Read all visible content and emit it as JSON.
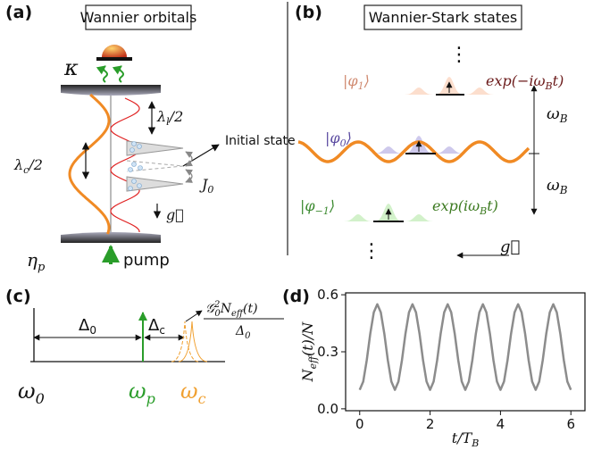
{
  "panel_a": {
    "label": "(a)",
    "title": "Wannier orbitals",
    "kappa": "κ",
    "lambda_l": {
      "base": "λ",
      "sub": "l",
      "rest": "/2"
    },
    "lambda_c": {
      "base": "λ",
      "sub": "c",
      "rest": "/2"
    },
    "initial_state": "Initial state",
    "J0": {
      "base": "J",
      "sub": "0"
    },
    "g": "g⃗",
    "eta_p": {
      "base": "η",
      "sub": "p"
    },
    "pump": "pump"
  },
  "panel_b": {
    "label": "(b)",
    "title": "Wannier-Stark states",
    "dots_top": "⋮",
    "dots_bottom": "⋮",
    "phi1": {
      "base": "|φ",
      "sub": "1",
      "rest": "⟩"
    },
    "phi0": {
      "base": "|φ",
      "sub": "0",
      "rest": "⟩"
    },
    "phim1": {
      "base": "|φ",
      "sub": "−1",
      "rest": "⟩"
    },
    "exp1": {
      "base": "exp(−iω",
      "sub": "B",
      "rest": "t)"
    },
    "expm1": {
      "base": "exp(iω",
      "sub": "B",
      "rest": "t)"
    },
    "omega_upper": {
      "base": "ω",
      "sub": "B"
    },
    "omega_lower": {
      "base": "ω",
      "sub": "B"
    },
    "g": "g⃗"
  },
  "panel_c": {
    "label": "(c)",
    "delta0": {
      "base": "Δ",
      "sub": "0"
    },
    "deltac": {
      "base": "Δ",
      "sub": "c"
    },
    "formula": {
      "g": "𝒢",
      "g_sup": "2",
      "g_sub": "0",
      "n": "N",
      "n_sub": "eff",
      "rest": "(t)",
      "den": "Δ",
      "den_sub": "0"
    },
    "omega0": {
      "base": "ω",
      "sub": "0"
    },
    "omegap": {
      "base": "ω",
      "sub": "p"
    },
    "omegac": {
      "base": "ω",
      "sub": "c"
    }
  },
  "chart_data": {
    "type": "line",
    "panel_label": "(d)",
    "xlabel": {
      "base": "t/T",
      "sub": "B"
    },
    "ylabel": {
      "base": "N",
      "sub": "eff",
      "rest": "(t)/N"
    },
    "color": "#8c8c8c",
    "x": [
      0,
      0.1,
      0.2,
      0.3,
      0.4,
      0.5,
      0.6,
      0.7,
      0.8,
      0.9,
      1,
      1.1,
      1.2,
      1.3,
      1.4,
      1.5,
      1.6,
      1.7,
      1.8,
      1.9,
      2,
      2.1,
      2.2,
      2.3,
      2.4,
      2.5,
      2.6,
      2.7,
      2.8,
      2.9,
      3,
      3.1,
      3.2,
      3.3,
      3.4,
      3.5,
      3.6,
      3.7,
      3.8,
      3.9,
      4,
      4.1,
      4.2,
      4.3,
      4.4,
      4.5,
      4.6,
      4.7,
      4.8,
      4.9,
      5,
      5.1,
      5.2,
      5.3,
      5.4,
      5.5,
      5.6,
      5.7,
      5.8,
      5.9,
      6
    ],
    "values": [
      0.1,
      0.143,
      0.255,
      0.395,
      0.507,
      0.55,
      0.507,
      0.395,
      0.255,
      0.143,
      0.1,
      0.143,
      0.255,
      0.395,
      0.507,
      0.55,
      0.507,
      0.395,
      0.255,
      0.143,
      0.1,
      0.143,
      0.255,
      0.395,
      0.507,
      0.55,
      0.507,
      0.395,
      0.255,
      0.143,
      0.1,
      0.143,
      0.255,
      0.395,
      0.507,
      0.55,
      0.507,
      0.395,
      0.255,
      0.143,
      0.1,
      0.143,
      0.255,
      0.395,
      0.507,
      0.55,
      0.507,
      0.395,
      0.255,
      0.143,
      0.1,
      0.143,
      0.255,
      0.395,
      0.507,
      0.55,
      0.507,
      0.395,
      0.255,
      0.143,
      0.1
    ],
    "xlim": [
      -0.4,
      6.4
    ],
    "ylim": [
      -0.01,
      0.61
    ],
    "xticks": [
      0,
      2,
      4,
      6
    ],
    "yticks": [
      {
        "value": 0,
        "label": "0.0"
      },
      0.3,
      0.6
    ]
  }
}
